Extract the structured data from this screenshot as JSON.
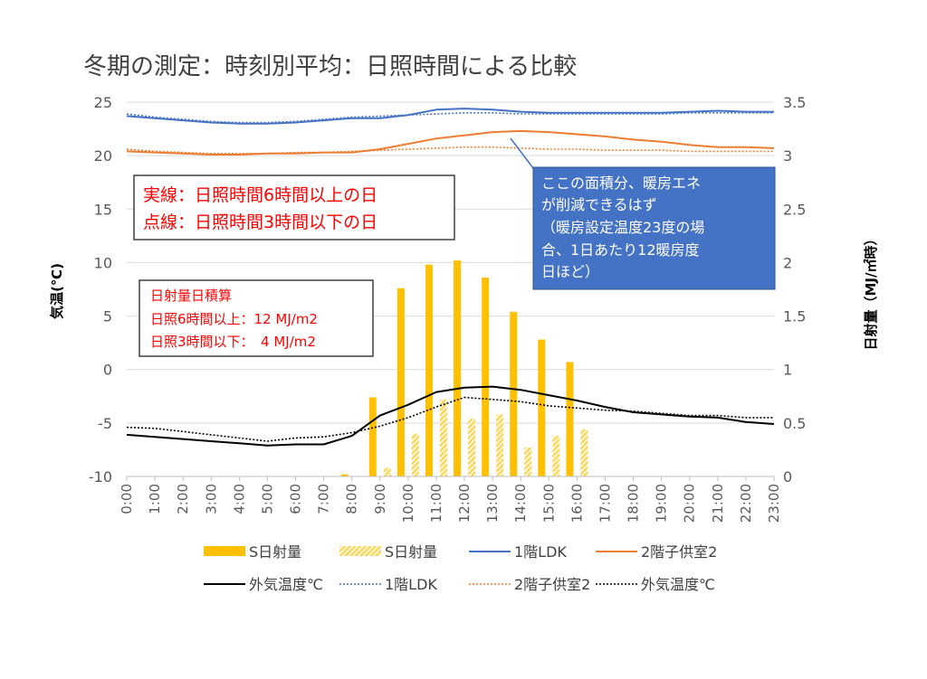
{
  "chart_data": {
    "type": "bar+line",
    "title": "冬期の測定：時刻別平均：日照時間による比較",
    "ylabel_left": "気温(℃)",
    "ylabel_right": "日射量（MJ/㎡時）",
    "ylim_left": [
      -10,
      25
    ],
    "ylim_right": [
      0,
      3.5
    ],
    "yticks_left": [
      "-10",
      "-5",
      "0",
      "5",
      "10",
      "15",
      "20",
      "25"
    ],
    "yticks_right": [
      "0",
      "0.5",
      "1",
      "1.5",
      "2",
      "2.5",
      "3",
      "3.5"
    ],
    "categories": [
      "0:00",
      "1:00",
      "2:00",
      "3:00",
      "4:00",
      "5:00",
      "6:00",
      "7:00",
      "8:00",
      "9:00",
      "10:00",
      "11:00",
      "12:00",
      "13:00",
      "14:00",
      "15:00",
      "16:00",
      "17:00",
      "18:00",
      "19:00",
      "20:00",
      "21:00",
      "22:00",
      "23:00"
    ],
    "grid": "horizontal",
    "legend_position": "bottom",
    "series": [
      {
        "name": "S日射量",
        "kind": "bar",
        "axis": "right",
        "style": "solid",
        "color": "#ffc000",
        "values": [
          0,
          0,
          0,
          0,
          0,
          0,
          0,
          0,
          0.02,
          0.74,
          1.76,
          1.98,
          2.02,
          1.86,
          1.54,
          1.28,
          1.07,
          0,
          0,
          0,
          0,
          0,
          0,
          0
        ]
      },
      {
        "name": "S日射量",
        "kind": "bar",
        "axis": "right",
        "style": "hatched",
        "color": "#ffc000",
        "values": [
          0,
          0,
          0,
          0,
          0,
          0,
          0,
          0,
          0,
          0.08,
          0.4,
          0.72,
          0.54,
          0.58,
          0.27,
          0.38,
          0.44,
          0,
          0,
          0,
          0,
          0,
          0,
          0
        ]
      },
      {
        "name": "1階LDK",
        "kind": "line",
        "axis": "left",
        "style": "solid",
        "color": "#4472c4",
        "values": [
          23.7,
          23.5,
          23.3,
          23.1,
          23.0,
          23.0,
          23.1,
          23.3,
          23.5,
          23.5,
          23.8,
          24.3,
          24.4,
          24.3,
          24.1,
          24.0,
          24.0,
          24.0,
          24.0,
          24.0,
          24.1,
          24.2,
          24.1,
          24.1
        ]
      },
      {
        "name": "2階子供室2",
        "kind": "line",
        "axis": "left",
        "style": "solid",
        "color": "#ed7d31",
        "values": [
          20.4,
          20.3,
          20.2,
          20.1,
          20.1,
          20.2,
          20.2,
          20.3,
          20.3,
          20.6,
          21.1,
          21.6,
          21.9,
          22.2,
          22.3,
          22.2,
          22.0,
          21.8,
          21.5,
          21.3,
          21.0,
          20.8,
          20.8,
          20.7
        ]
      },
      {
        "name": "外気温度℃",
        "kind": "line",
        "axis": "left",
        "style": "solid",
        "color": "#000000",
        "values": [
          -6.1,
          -6.3,
          -6.5,
          -6.7,
          -6.9,
          -7.1,
          -7.0,
          -7.0,
          -6.2,
          -4.3,
          -3.3,
          -2.1,
          -1.7,
          -1.6,
          -1.9,
          -2.4,
          -2.9,
          -3.5,
          -4.0,
          -4.2,
          -4.4,
          -4.5,
          -4.9,
          -5.1
        ]
      },
      {
        "name": "1階LDK",
        "kind": "line",
        "axis": "left",
        "style": "dotted",
        "color": "#4472c4",
        "values": [
          23.9,
          23.6,
          23.4,
          23.2,
          23.1,
          23.1,
          23.2,
          23.4,
          23.6,
          23.7,
          23.8,
          23.9,
          24.0,
          24.0,
          23.9,
          23.9,
          23.9,
          23.9,
          23.9,
          23.9,
          24.0,
          24.0,
          24.0,
          24.0
        ]
      },
      {
        "name": "2階子供室2",
        "kind": "line",
        "axis": "left",
        "style": "dotted",
        "color": "#ed7d31",
        "values": [
          20.6,
          20.4,
          20.3,
          20.2,
          20.2,
          20.2,
          20.3,
          20.3,
          20.4,
          20.5,
          20.6,
          20.7,
          20.8,
          20.8,
          20.7,
          20.6,
          20.6,
          20.5,
          20.5,
          20.5,
          20.4,
          20.4,
          20.4,
          20.4
        ]
      },
      {
        "name": "外気温度℃",
        "kind": "line",
        "axis": "left",
        "style": "dotted",
        "color": "#000000",
        "values": [
          -5.4,
          -5.5,
          -5.8,
          -6.1,
          -6.4,
          -6.7,
          -6.4,
          -6.3,
          -5.9,
          -5.3,
          -4.5,
          -3.5,
          -2.6,
          -2.8,
          -3.0,
          -3.4,
          -3.6,
          -3.8,
          -3.9,
          -4.1,
          -4.3,
          -4.3,
          -4.5,
          -4.5
        ]
      }
    ],
    "annotations": {
      "line_style_note": [
        "実線：日照時間6時間以上の日",
        "点線：日照時間3時間以下の日"
      ],
      "radiation_note": [
        "日射量日積算",
        "日照6時間以上：12 MJ/m2",
        "日照3時間以下：　4 MJ/m2"
      ],
      "callout": [
        "ここの面積分、暖房エネ",
        "が削減できるはず",
        "（暖房設定温度23度の場",
        "合、1日あたり12暖房度",
        "日ほど）"
      ]
    }
  }
}
